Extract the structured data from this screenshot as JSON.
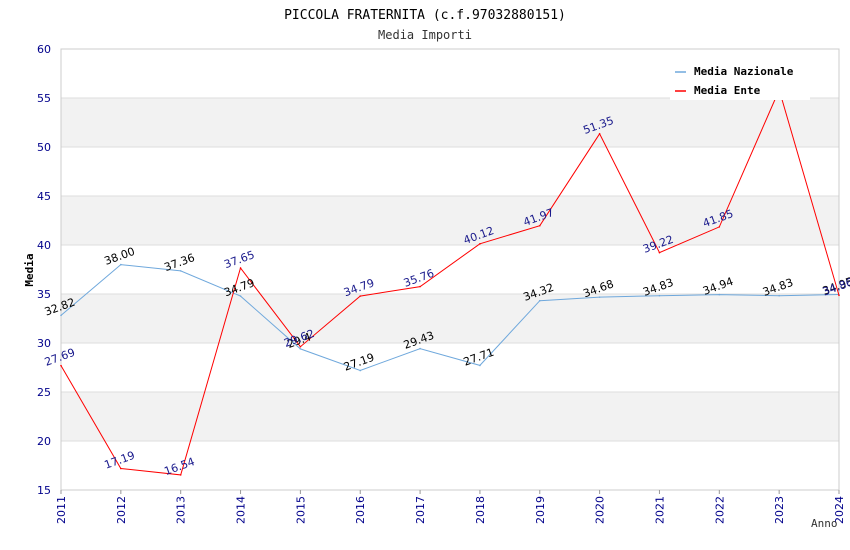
{
  "chart_data": {
    "type": "line",
    "title": "PICCOLA FRATERNITA (c.f.97032880151)",
    "subtitle": "Media Importi",
    "xlabel": "Anno",
    "ylabel": "Media",
    "ylim": [
      15,
      60
    ],
    "yticks": [
      "15",
      "20",
      "25",
      "30",
      "35",
      "40",
      "45",
      "50",
      "55",
      "60"
    ],
    "categories": [
      "2011",
      "2012",
      "2013",
      "2014",
      "2015",
      "2016",
      "2017",
      "2018",
      "2019",
      "2020",
      "2021",
      "2022",
      "2023",
      "2024"
    ],
    "series": [
      {
        "name": "Media Nazionale",
        "color": "#6fa8dc",
        "label_color": "#000000",
        "values": [
          32.82,
          38.0,
          37.36,
          34.79,
          29.4,
          27.19,
          29.43,
          27.71,
          34.32,
          34.68,
          34.83,
          34.94,
          34.83,
          34.95
        ],
        "labels": [
          "32.82",
          "38.00",
          "37.36",
          "34.79",
          "29.4",
          "27.19",
          "29.43",
          "27.71",
          "34.32",
          "34.68",
          "34.83",
          "34.94",
          "34.83",
          "34.95"
        ]
      },
      {
        "name": "Media Ente",
        "color": "#ff0000",
        "label_color": "#1a1a8c",
        "values": [
          27.69,
          17.19,
          16.54,
          37.65,
          29.62,
          34.79,
          35.76,
          40.12,
          41.97,
          51.35,
          39.22,
          41.85,
          55.83,
          34.86
        ],
        "labels": [
          "27.69",
          "17.19",
          "16.54",
          "37.65",
          "29.62",
          "34.79",
          "35.76",
          "40.12",
          "41.97",
          "51.35",
          "39.22",
          "41.85",
          "",
          "34.86"
        ]
      }
    ],
    "legend_position": "top-right",
    "grid": true,
    "colors": {
      "band": "#f2f2f2",
      "axis_text": "#00008b",
      "title": "#000000",
      "grid": "#dddddd"
    }
  }
}
